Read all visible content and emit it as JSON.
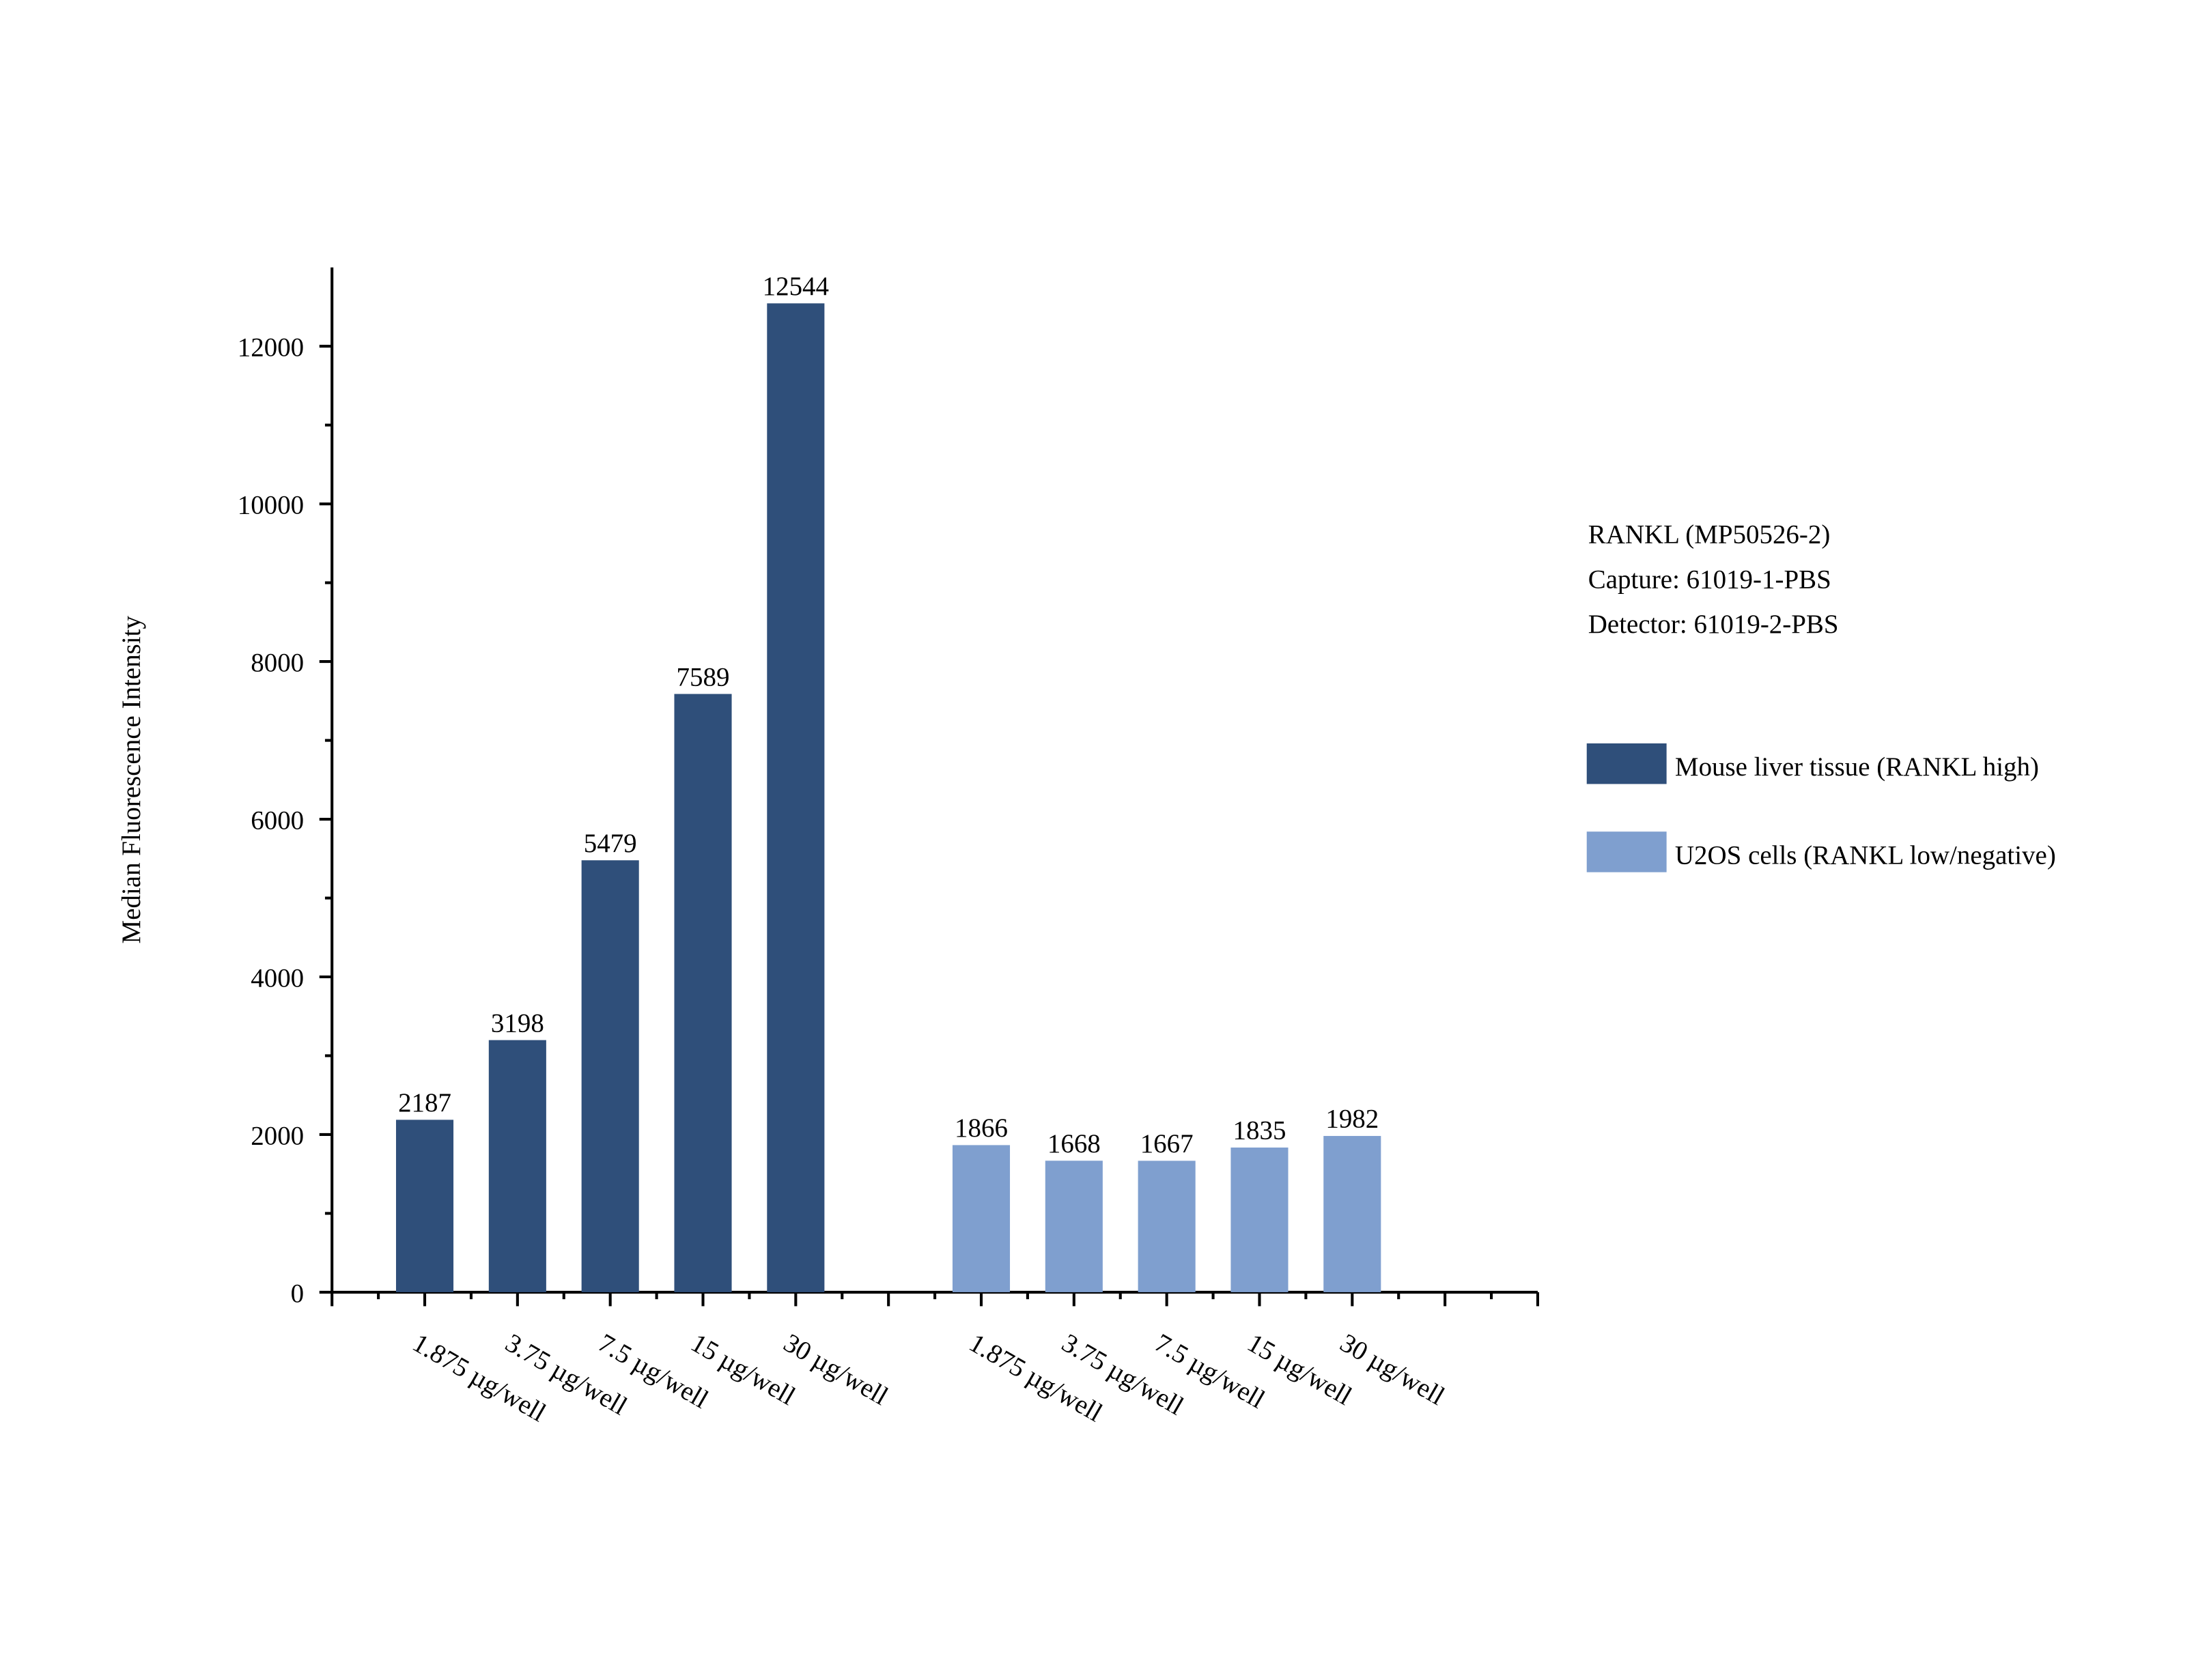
{
  "chart_data": {
    "type": "bar",
    "y_label": "Median Fluorescence Intensity",
    "annotation": [
      "RANKL (MP50526-2)",
      "Capture: 61019-1-PBS",
      "Detector: 61019-2-PBS"
    ],
    "categories": [
      "1.875 µg/well",
      "3.75 µg/well",
      "7.5 µg/well",
      "15 µg/well",
      "30 µg/well",
      null,
      "1.875 µg/well",
      "3.75 µg/well",
      "7.5 µg/well",
      "15 µg/well",
      "30 µg/well",
      null
    ],
    "series": [
      {
        "name": "Mouse liver tissue (RANKL high)",
        "color": "#2f4f7a",
        "values": [
          2187,
          3198,
          5479,
          7589,
          12544,
          null,
          null,
          null,
          null,
          null,
          null,
          null
        ]
      },
      {
        "name": "U2OS cells (RANKL low/negative)",
        "color": "#7f9fcf",
        "values": [
          null,
          null,
          null,
          null,
          null,
          null,
          1866,
          1668,
          1667,
          1835,
          1982,
          null
        ]
      }
    ],
    "ylim": [
      0,
      13000
    ],
    "yticks": [
      0,
      2000,
      4000,
      6000,
      8000,
      10000,
      12000
    ],
    "grid": false
  }
}
